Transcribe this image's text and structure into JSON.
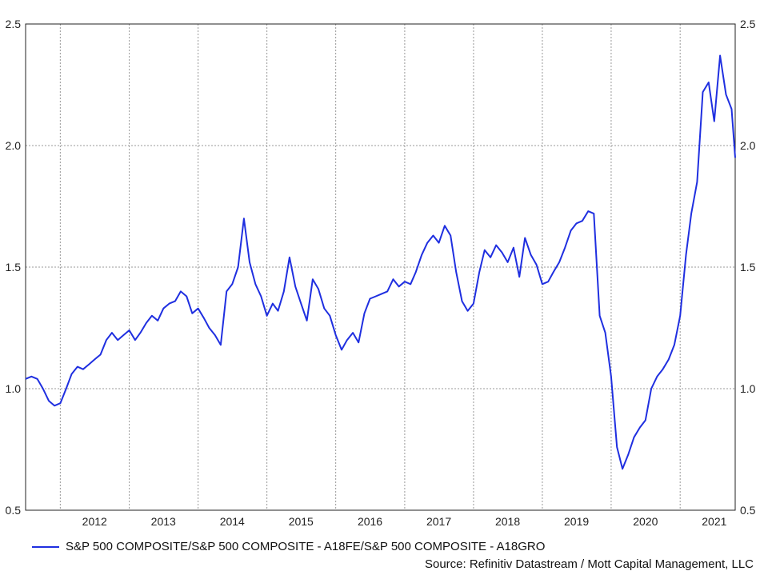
{
  "chart_data": {
    "type": "line",
    "y_ticks": [
      "0.5",
      "1.0",
      "1.5",
      "2.0",
      "2.5"
    ],
    "x_ticks": [
      "2012",
      "2013",
      "2014",
      "2015",
      "2016",
      "2017",
      "2018",
      "2019",
      "2020",
      "2021"
    ],
    "ylim": [
      0.5,
      2.5
    ],
    "xlim": [
      "2011-07-01",
      "2021-10-20"
    ],
    "grid": true,
    "line_color": "#1f2fe0",
    "legend_placement": "bottom-left",
    "series": [
      {
        "name": "S&P 500 COMPOSITE/S&P 500 COMPOSITE - A18FE/S&P 500 COMPOSITE - A18GRO",
        "x": [
          "2011-07-01",
          "2011-08-01",
          "2011-09-01",
          "2011-10-01",
          "2011-11-01",
          "2011-12-01",
          "2012-01-01",
          "2012-02-01",
          "2012-03-01",
          "2012-04-01",
          "2012-05-01",
          "2012-06-01",
          "2012-07-01",
          "2012-08-01",
          "2012-09-01",
          "2012-10-01",
          "2012-11-01",
          "2012-12-01",
          "2013-01-01",
          "2013-02-01",
          "2013-03-01",
          "2013-04-01",
          "2013-05-01",
          "2013-06-01",
          "2013-07-01",
          "2013-08-01",
          "2013-09-01",
          "2013-10-01",
          "2013-11-01",
          "2013-12-01",
          "2014-01-01",
          "2014-02-01",
          "2014-03-01",
          "2014-04-01",
          "2014-05-01",
          "2014-06-01",
          "2014-07-01",
          "2014-08-01",
          "2014-09-01",
          "2014-10-01",
          "2014-11-01",
          "2014-12-01",
          "2015-01-01",
          "2015-02-01",
          "2015-03-01",
          "2015-04-01",
          "2015-05-01",
          "2015-06-01",
          "2015-07-01",
          "2015-08-01",
          "2015-09-01",
          "2015-10-01",
          "2015-11-01",
          "2015-12-01",
          "2016-01-01",
          "2016-02-01",
          "2016-03-01",
          "2016-04-01",
          "2016-05-01",
          "2016-06-01",
          "2016-07-01",
          "2016-08-01",
          "2016-09-01",
          "2016-10-01",
          "2016-11-01",
          "2016-12-01",
          "2017-01-01",
          "2017-02-01",
          "2017-03-01",
          "2017-04-01",
          "2017-05-01",
          "2017-06-01",
          "2017-07-01",
          "2017-08-01",
          "2017-09-01",
          "2017-10-01",
          "2017-11-01",
          "2017-12-01",
          "2018-01-01",
          "2018-02-01",
          "2018-03-01",
          "2018-04-01",
          "2018-05-01",
          "2018-06-01",
          "2018-07-01",
          "2018-08-01",
          "2018-09-01",
          "2018-10-01",
          "2018-11-01",
          "2018-12-01",
          "2019-01-01",
          "2019-02-01",
          "2019-03-01",
          "2019-04-01",
          "2019-05-01",
          "2019-06-01",
          "2019-07-01",
          "2019-08-01",
          "2019-09-01",
          "2019-10-01",
          "2019-11-01",
          "2019-12-01",
          "2020-01-01",
          "2020-02-01",
          "2020-03-01",
          "2020-04-01",
          "2020-05-01",
          "2020-06-01",
          "2020-07-01",
          "2020-08-01",
          "2020-09-01",
          "2020-10-01",
          "2020-11-01",
          "2020-12-01",
          "2021-01-01",
          "2021-02-01",
          "2021-03-01",
          "2021-04-01",
          "2021-05-01",
          "2021-06-01",
          "2021-07-01",
          "2021-08-01",
          "2021-09-01",
          "2021-10-01",
          "2021-10-20"
        ],
        "values": [
          1.04,
          1.05,
          1.04,
          1.0,
          0.95,
          0.93,
          0.94,
          1.0,
          1.06,
          1.09,
          1.08,
          1.1,
          1.12,
          1.14,
          1.2,
          1.23,
          1.2,
          1.22,
          1.24,
          1.2,
          1.23,
          1.27,
          1.3,
          1.28,
          1.33,
          1.35,
          1.36,
          1.4,
          1.38,
          1.31,
          1.33,
          1.29,
          1.25,
          1.22,
          1.18,
          1.4,
          1.43,
          1.5,
          1.7,
          1.52,
          1.43,
          1.38,
          1.3,
          1.35,
          1.32,
          1.4,
          1.54,
          1.42,
          1.35,
          1.28,
          1.45,
          1.41,
          1.33,
          1.3,
          1.22,
          1.16,
          1.2,
          1.23,
          1.19,
          1.31,
          1.37,
          1.38,
          1.39,
          1.4,
          1.45,
          1.42,
          1.44,
          1.43,
          1.48,
          1.55,
          1.6,
          1.63,
          1.6,
          1.67,
          1.63,
          1.48,
          1.36,
          1.32,
          1.35,
          1.48,
          1.57,
          1.54,
          1.59,
          1.56,
          1.52,
          1.58,
          1.46,
          1.62,
          1.55,
          1.51,
          1.43,
          1.44,
          1.48,
          1.52,
          1.58,
          1.65,
          1.68,
          1.69,
          1.73,
          1.72,
          1.3,
          1.23,
          1.05,
          0.76,
          0.67,
          0.73,
          0.8,
          0.84,
          0.87,
          1.0,
          1.05,
          1.08,
          1.12,
          1.18,
          1.3,
          1.55,
          1.72,
          1.85,
          2.22,
          2.26,
          2.1,
          2.37,
          2.21,
          2.15,
          1.95
        ]
      }
    ],
    "source": "Source: Refinitiv Datastream / Mott Capital Management, LLC"
  }
}
